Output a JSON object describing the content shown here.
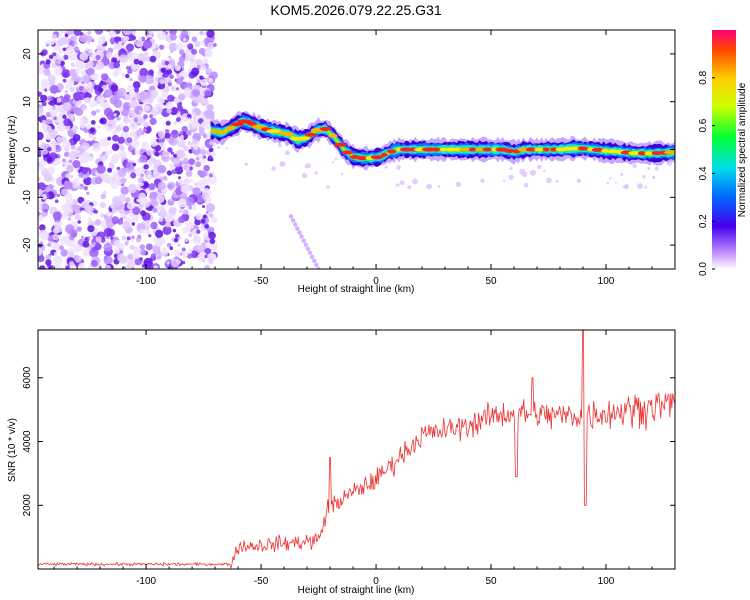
{
  "title": "KOM5.2026.079.22.25.G31",
  "colors": {
    "snr_line": "#ee3333",
    "scatter_noise": "#7b2ff0",
    "axis": "#000000"
  },
  "chart_data": [
    {
      "type": "heatmap",
      "title": "KOM5.2026.079.22.25.G31",
      "xlabel": "Height of straight line (km)",
      "ylabel": "Frequency (Hz)",
      "xlim": [
        -147,
        130
      ],
      "ylim": [
        -25,
        25
      ],
      "xticks": [
        -100,
        -50,
        0,
        50,
        100
      ],
      "yticks": [
        -20,
        -10,
        0,
        10,
        20
      ],
      "xtick_labels": [
        "-100",
        "-50",
        "0",
        "50",
        "100"
      ],
      "ytick_labels": [
        "-20",
        "-10",
        "0",
        "10",
        "20"
      ],
      "noise_region_km": [
        -147,
        -70
      ],
      "ridge": {
        "x": [
          -72,
          -67,
          -62,
          -58,
          -54,
          -50,
          -46,
          -42,
          -38,
          -34,
          -30,
          -26,
          -22,
          -18,
          -14,
          -10,
          -6,
          -2,
          2,
          6,
          10,
          20,
          30,
          40,
          50,
          55,
          60,
          65,
          70,
          75,
          80,
          85,
          90,
          95,
          100,
          105,
          110,
          115,
          120,
          125,
          130
        ],
        "y": [
          4,
          3.5,
          4.8,
          6,
          5.4,
          4.5,
          4,
          3.6,
          3.2,
          2,
          2.5,
          4,
          4.3,
          2.5,
          0,
          -1.5,
          -1.8,
          -1.8,
          -1.5,
          -0.5,
          0,
          0,
          0,
          0,
          0,
          0,
          -0.5,
          0,
          0,
          0,
          0,
          0.2,
          0.2,
          0,
          -0.3,
          -0.4,
          -0.7,
          -0.8,
          -0.8,
          -0.7,
          -0.6
        ]
      },
      "colorbar": {
        "label": "Normalized spectral amplitude",
        "range": [
          0,
          1
        ],
        "ticks": [
          0.0,
          0.2,
          0.4,
          0.6,
          0.8
        ],
        "tick_labels": [
          "0.0",
          "0.2",
          "0.4",
          "0.6",
          "0.8"
        ]
      }
    },
    {
      "type": "line",
      "xlabel": "Height of straight line (km)",
      "ylabel": "SNR (10 * v/v)",
      "xlim": [
        -147,
        130
      ],
      "ylim": [
        0,
        7500
      ],
      "xticks": [
        -100,
        -50,
        0,
        50,
        100
      ],
      "yticks": [
        2000,
        4000,
        6000
      ],
      "xtick_labels": [
        "-100",
        "-50",
        "0",
        "50",
        "100"
      ],
      "ytick_labels": [
        "2000",
        "4000",
        "6000"
      ],
      "series": [
        {
          "name": "SNR",
          "trend_x": [
            -147,
            -63,
            -60,
            -40,
            -25,
            -21,
            -10,
            0,
            10,
            20,
            40,
            50,
            60,
            80,
            100,
            130
          ],
          "trend_y": [
            150,
            150,
            700,
            800,
            900,
            1900,
            2400,
            2800,
            3500,
            4200,
            4500,
            4800,
            4900,
            4800,
            4900,
            5200
          ],
          "spikes": [
            {
              "x": -20,
              "y": 3500
            },
            {
              "x": 61,
              "y": 2900
            },
            {
              "x": 68,
              "y": 6000
            },
            {
              "x": 90,
              "y": 7500
            },
            {
              "x": 91,
              "y": 2000
            }
          ]
        }
      ]
    }
  ]
}
